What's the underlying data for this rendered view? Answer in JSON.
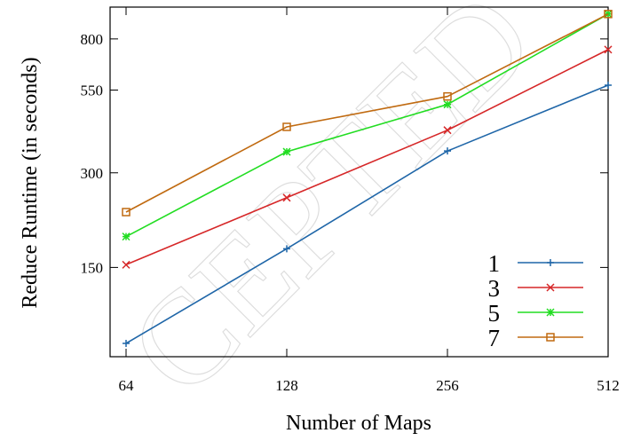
{
  "watermark_text": "CEPTED",
  "chart_data": {
    "type": "line",
    "xlabel": "Number of Maps",
    "ylabel": "Reduce Runtime (in seconds)",
    "x": [
      64,
      128,
      256,
      512
    ],
    "x_tick_labels": [
      "64",
      "128",
      "256",
      "512"
    ],
    "y_ticks": [
      150,
      300,
      550,
      800
    ],
    "y_tick_labels": [
      "150",
      "300",
      "550",
      "800"
    ],
    "y_scale": "log",
    "xlim": [
      64,
      512
    ],
    "ylim": [
      78,
      1010
    ],
    "grid": false,
    "legend_position": "bottom-right",
    "series": [
      {
        "name": "1",
        "color": "#1f66a8",
        "marker": "plus",
        "values": [
          86,
          172,
          352,
          570
        ]
      },
      {
        "name": "3",
        "color": "#d62728",
        "marker": "cross",
        "values": [
          153,
          250,
          410,
          740
        ]
      },
      {
        "name": "5",
        "color": "#22dd22",
        "marker": "star",
        "values": [
          188,
          350,
          495,
          960
        ]
      },
      {
        "name": "7",
        "color": "#c06a10",
        "marker": "square",
        "values": [
          225,
          420,
          525,
          960
        ]
      }
    ]
  }
}
